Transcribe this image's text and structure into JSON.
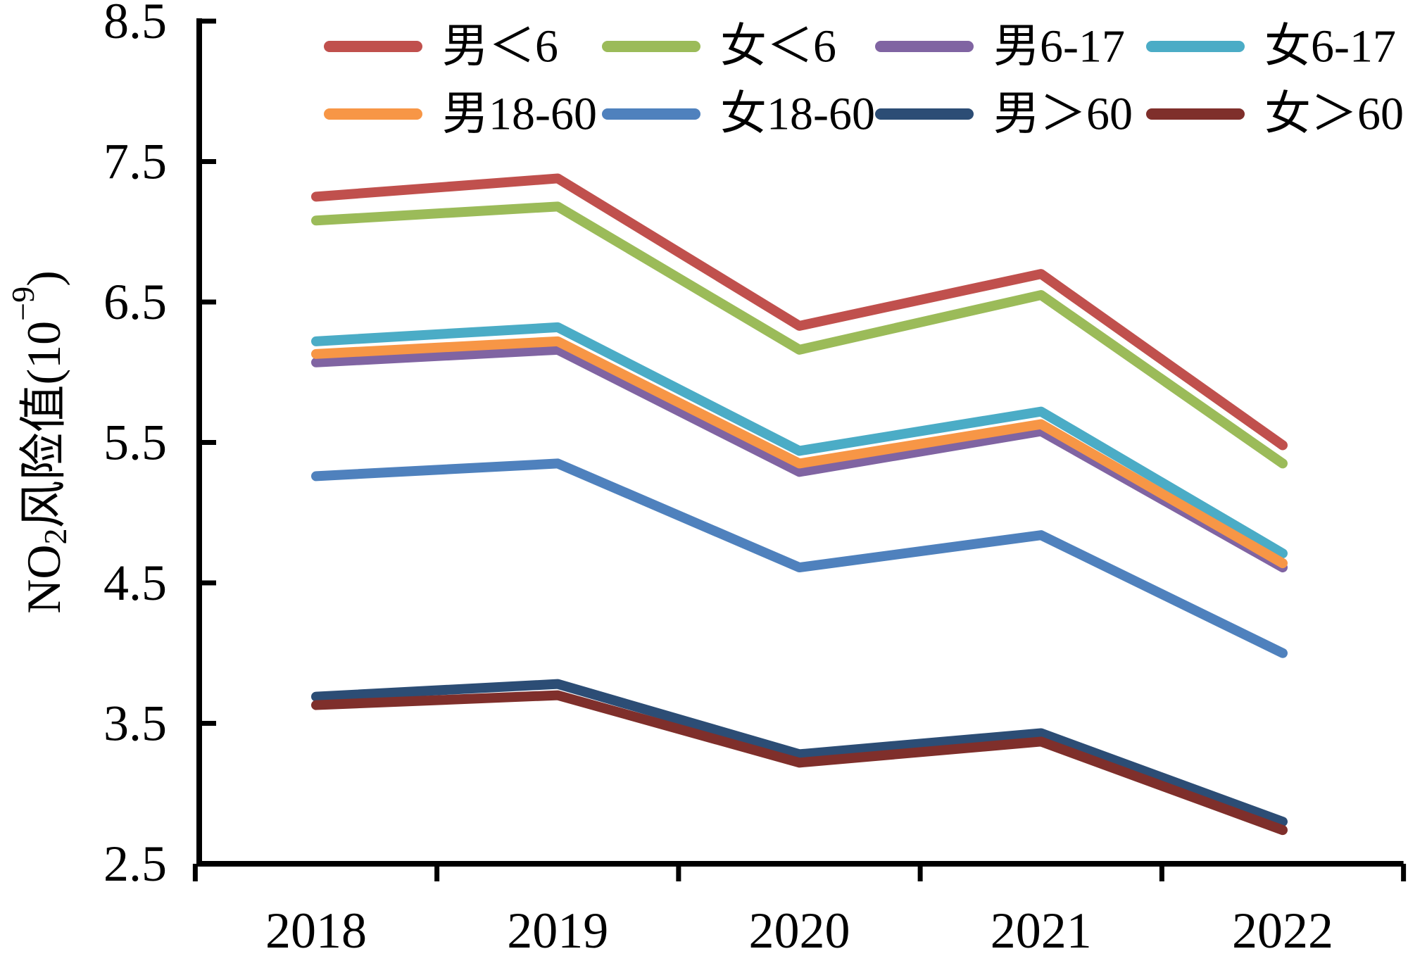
{
  "chart_data": {
    "type": "line",
    "title": "",
    "categories": [
      "2018",
      "2019",
      "2020",
      "2021",
      "2022"
    ],
    "series": [
      {
        "name": "男＜6",
        "color": "#C0504D",
        "values": [
          7.25,
          7.38,
          6.33,
          6.7,
          5.48
        ]
      },
      {
        "name": "女＜6",
        "color": "#9BBB59",
        "values": [
          7.08,
          7.18,
          6.16,
          6.55,
          5.35
        ]
      },
      {
        "name": "男6-17",
        "color": "#8064A2",
        "values": [
          6.07,
          6.16,
          5.29,
          5.58,
          4.61
        ]
      },
      {
        "name": "女6-17",
        "color": "#4BACC6",
        "values": [
          6.22,
          6.32,
          5.44,
          5.72,
          4.71
        ]
      },
      {
        "name": "男18-60",
        "color": "#F79646",
        "values": [
          6.13,
          6.22,
          5.35,
          5.63,
          4.64
        ]
      },
      {
        "name": "女18-60",
        "color": "#4F81BD",
        "values": [
          5.26,
          5.35,
          4.61,
          4.84,
          4.0
        ]
      },
      {
        "name": "男＞60",
        "color": "#2C4D75",
        "values": [
          3.69,
          3.78,
          3.28,
          3.43,
          2.8
        ]
      },
      {
        "name": "女＞60",
        "color": "#7F2F2B",
        "values": [
          3.63,
          3.7,
          3.22,
          3.37,
          2.74
        ]
      }
    ],
    "y_axis": {
      "label_parts": {
        "base": "NO",
        "sub": "2",
        "mid": "风险值(10",
        "sup": "−9",
        "end": ")"
      },
      "ticks": [
        "2.5",
        "3.5",
        "4.5",
        "5.5",
        "6.5",
        "7.5",
        "8.5"
      ],
      "min": 2.5,
      "max": 8.5
    },
    "x_axis": {
      "label": ""
    },
    "legend": {
      "position": "top",
      "rows": 2,
      "items_per_row": 4
    },
    "grid": false,
    "axis_color": "#000000",
    "background": "#FFFFFF"
  }
}
